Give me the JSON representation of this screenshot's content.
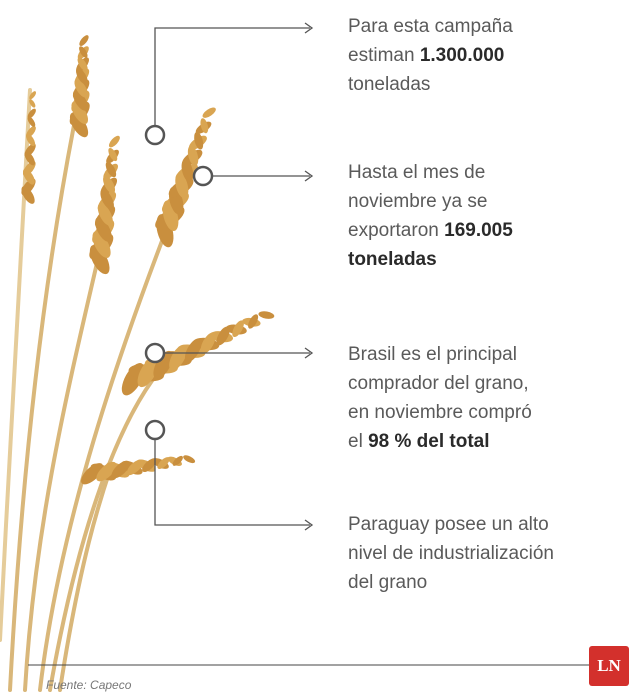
{
  "callouts": [
    {
      "lines": [
        [
          {
            "text": "Para esta campaña",
            "bold": false
          }
        ],
        [
          {
            "text": "estiman",
            "bold": false
          },
          {
            "text": "1.300.000",
            "bold": true
          }
        ],
        [
          {
            "text": "toneladas",
            "bold": false
          }
        ]
      ]
    },
    {
      "lines": [
        [
          {
            "text": "Hasta el mes de",
            "bold": false
          }
        ],
        [
          {
            "text": "noviembre ya se",
            "bold": false
          }
        ],
        [
          {
            "text": "exportaron",
            "bold": false
          },
          {
            "text": "169.005",
            "bold": true
          }
        ],
        [
          {
            "text": "toneladas",
            "bold": true
          }
        ]
      ]
    },
    {
      "lines": [
        [
          {
            "text": "Brasil es el principal",
            "bold": false
          }
        ],
        [
          {
            "text": "comprador del grano,",
            "bold": false
          }
        ],
        [
          {
            "text": "en noviembre compró",
            "bold": false
          }
        ],
        [
          {
            "text": "el",
            "bold": false
          },
          {
            "text": "98 % del total",
            "bold": true
          }
        ]
      ]
    },
    {
      "lines": [
        [
          {
            "text": "Paraguay posee un alto",
            "bold": false
          }
        ],
        [
          {
            "text": "nivel de industrialización",
            "bold": false
          }
        ],
        [
          {
            "text": "del grano",
            "bold": false
          }
        ]
      ]
    }
  ],
  "footer": {
    "source": "Fuente: Capeco",
    "logo": "LN"
  }
}
